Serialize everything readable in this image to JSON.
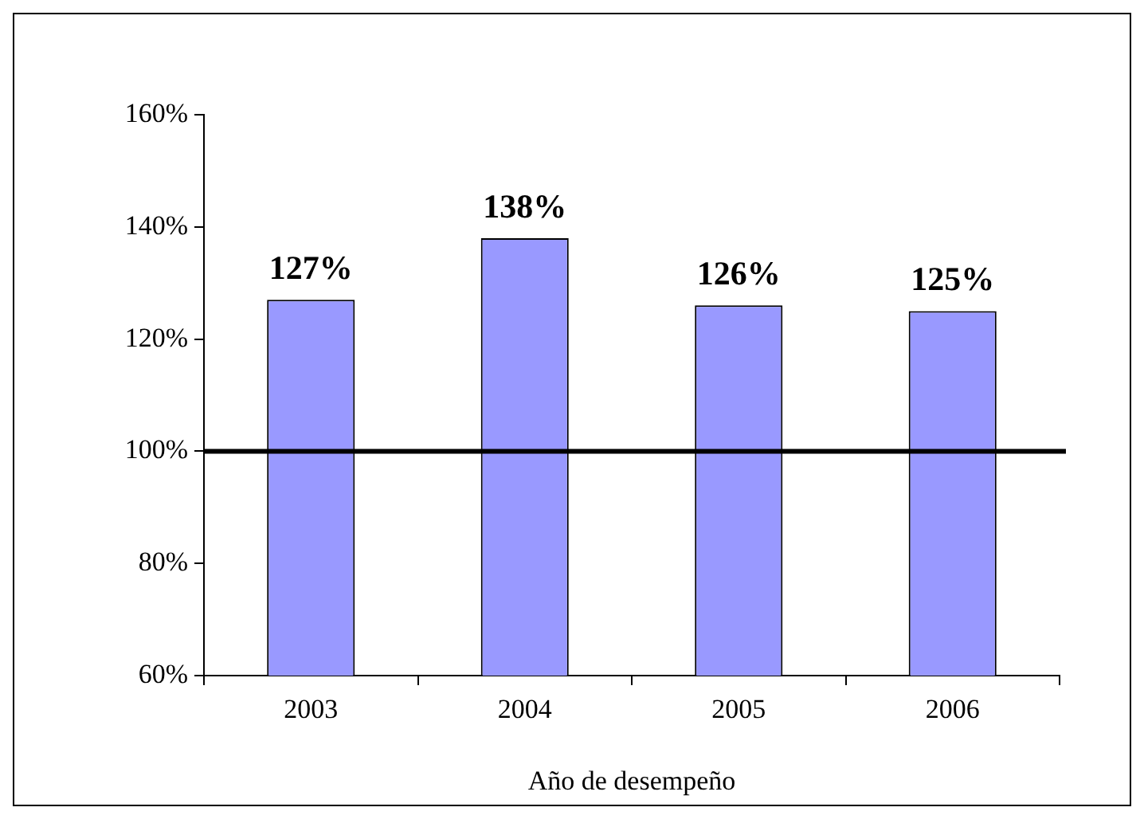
{
  "chart_data": {
    "type": "bar",
    "xlabel": "Año de desempeño",
    "categories": [
      "2003",
      "2004",
      "2005",
      "2006"
    ],
    "values": [
      127,
      138,
      126,
      125
    ],
    "value_labels": [
      "127%",
      "138%",
      "126%",
      "125%"
    ],
    "color": "#9999ff",
    "ylim": [
      60,
      160
    ],
    "yticks": [
      {
        "value": 60,
        "label": "60%"
      },
      {
        "value": 80,
        "label": "80%"
      },
      {
        "value": 100,
        "label": "100%"
      },
      {
        "value": 120,
        "label": "120%"
      },
      {
        "value": 140,
        "label": "140%"
      },
      {
        "value": 160,
        "label": "160%"
      }
    ],
    "ref_lines": [
      {
        "axis": "y",
        "value": 100,
        "color": "#000000"
      }
    ]
  }
}
